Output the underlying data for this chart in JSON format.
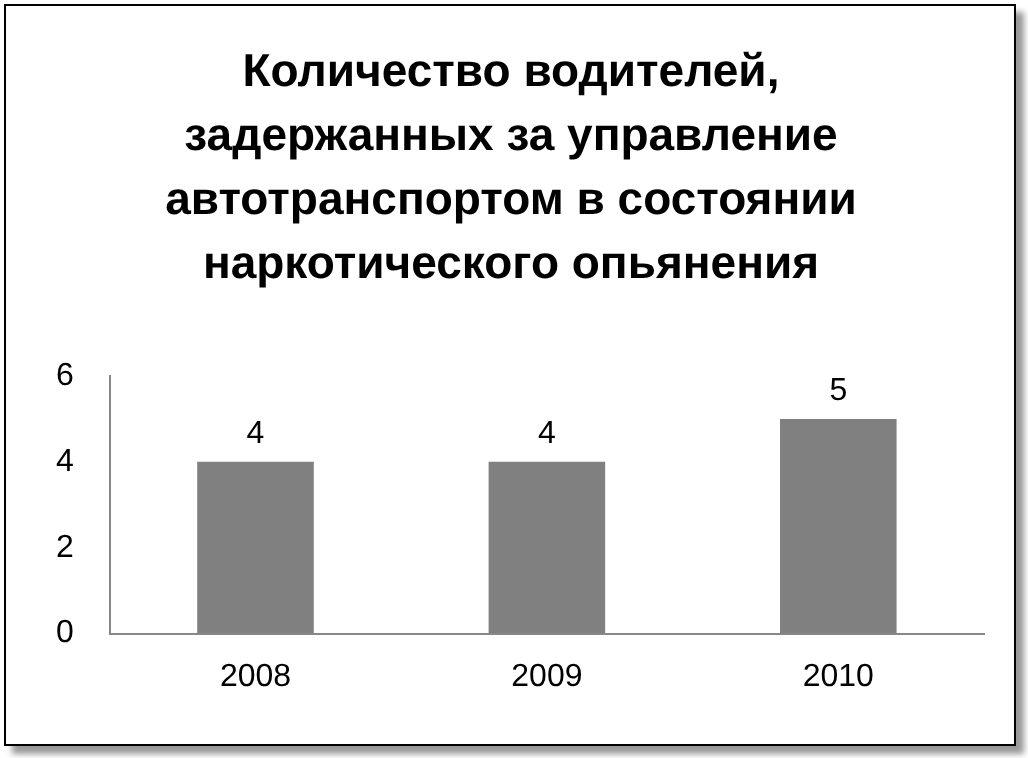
{
  "chart_data": {
    "type": "bar",
    "title": "Количество водителей, задержанных за управление автотранспортом в состоянии наркотического опьянения",
    "categories": [
      "2008",
      "2009",
      "2010"
    ],
    "values": [
      4,
      4,
      5
    ],
    "color": "#808080",
    "ylim": [
      0,
      6
    ],
    "yticks": [
      0,
      2,
      4,
      6
    ],
    "grid": false,
    "data_labels": true
  }
}
